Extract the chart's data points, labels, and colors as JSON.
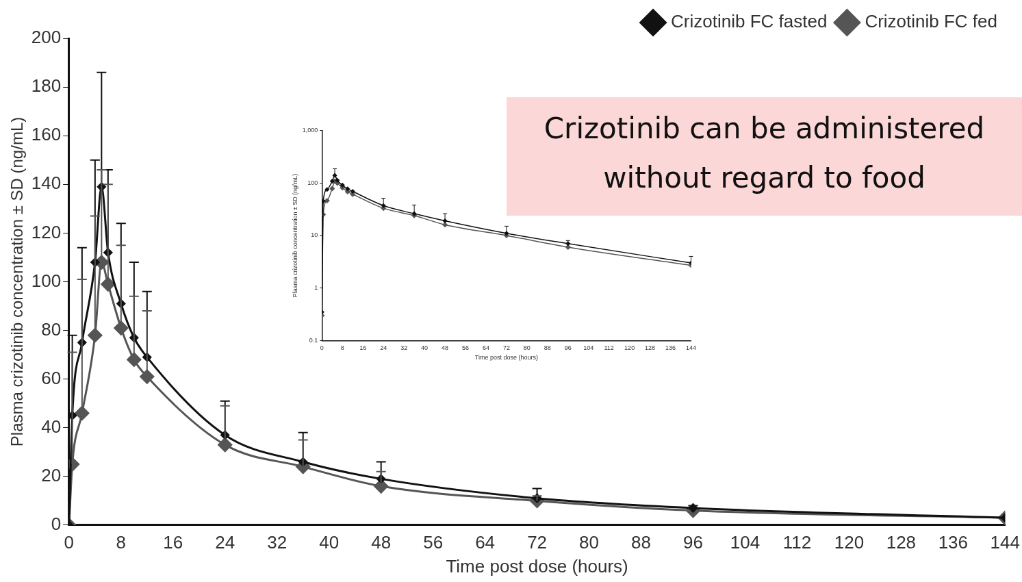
{
  "chart_data": [
    {
      "type": "line",
      "xlabel": "Time post dose (hours)",
      "ylabel": "Plasma crizotinib concentration ± SD (ng/mL)",
      "xlim": [
        0,
        144
      ],
      "xticks": [
        0,
        8,
        16,
        24,
        32,
        40,
        48,
        56,
        64,
        72,
        80,
        88,
        96,
        104,
        112,
        120,
        128,
        136,
        144
      ],
      "ylim": [
        0,
        200
      ],
      "yticks": [
        0,
        20,
        40,
        60,
        80,
        100,
        120,
        140,
        160,
        180,
        200
      ],
      "legend": "top right",
      "marker": "diamond",
      "annotations": [
        "Crizotinib can be administered without regard to food"
      ],
      "series": [
        {
          "name": "Crizotinib FC fasted",
          "color": "#111111",
          "x": [
            0,
            0.5,
            2,
            4,
            5,
            6,
            8,
            10,
            12,
            24,
            36,
            48,
            72,
            96,
            144
          ],
          "values": [
            0,
            45,
            75,
            108,
            139,
            112,
            91,
            77,
            69,
            37,
            26,
            19,
            11,
            7,
            3
          ],
          "errors": [
            null,
            [
              45,
              78
            ],
            [
              75,
              114
            ],
            [
              108,
              150
            ],
            [
              139,
              186
            ],
            [
              112,
              146
            ],
            [
              91,
              124
            ],
            [
              77,
              108
            ],
            [
              69,
              96
            ],
            [
              37,
              51
            ],
            [
              26,
              38
            ],
            [
              19,
              26
            ],
            [
              11,
              15
            ],
            [
              7,
              8
            ],
            null
          ]
        },
        {
          "name": "Crizotinib FC fed",
          "color": "#555555",
          "x": [
            0,
            0.5,
            2,
            4,
            5,
            6,
            8,
            10,
            12,
            24,
            36,
            48,
            72,
            96,
            144
          ],
          "values": [
            0,
            25,
            46,
            78,
            108,
            99,
            81,
            68,
            61,
            33,
            24,
            16,
            10,
            6,
            3
          ],
          "errors": [
            null,
            [
              25,
              71
            ],
            [
              46,
              101
            ],
            [
              78,
              127
            ],
            [
              108,
              146
            ],
            [
              99,
              140
            ],
            [
              81,
              115
            ],
            [
              68,
              94
            ],
            [
              61,
              88
            ],
            [
              33,
              49
            ],
            [
              24,
              35
            ],
            [
              16,
              22
            ],
            [
              10,
              12
            ],
            null,
            null
          ]
        }
      ]
    },
    {
      "type": "line",
      "xlabel": "Time post dose (hours)",
      "ylabel": "Plasma crizotinib concentration ± SD (ng/mL)",
      "log": "y",
      "xlim": [
        0,
        144
      ],
      "xticks": [
        0,
        8,
        16,
        24,
        32,
        40,
        48,
        56,
        64,
        72,
        80,
        88,
        96,
        104,
        112,
        120,
        128,
        136,
        144
      ],
      "ylim": [
        0.1,
        1000
      ],
      "yticks": [
        0.1,
        1,
        10,
        100,
        {
          "value": 1000,
          "label": "1,000"
        }
      ],
      "marker": "diamond",
      "series": [
        {
          "color": "#111111",
          "x": [
            0,
            0.5,
            2,
            4,
            5,
            6,
            8,
            10,
            12,
            24,
            36,
            48,
            72,
            96,
            144
          ],
          "values": [
            0.35,
            45,
            75,
            108,
            139,
            112,
            91,
            77,
            69,
            37,
            26,
            19,
            11,
            7,
            3
          ],
          "errors": [
            null,
            null,
            null,
            null,
            [
              139,
              186
            ],
            null,
            null,
            null,
            null,
            [
              37,
              51
            ],
            [
              26,
              38
            ],
            [
              19,
              26
            ],
            [
              11,
              15
            ],
            [
              7,
              8
            ],
            [
              3,
              4
            ]
          ]
        },
        {
          "color": "#555555",
          "x": [
            0,
            0.5,
            2,
            4,
            5,
            6,
            8,
            10,
            12,
            24,
            36,
            48,
            72,
            96,
            144
          ],
          "values": [
            0.3,
            25,
            46,
            78,
            108,
            99,
            81,
            68,
            61,
            33,
            24,
            16,
            10,
            6,
            2.7
          ]
        }
      ]
    }
  ]
}
